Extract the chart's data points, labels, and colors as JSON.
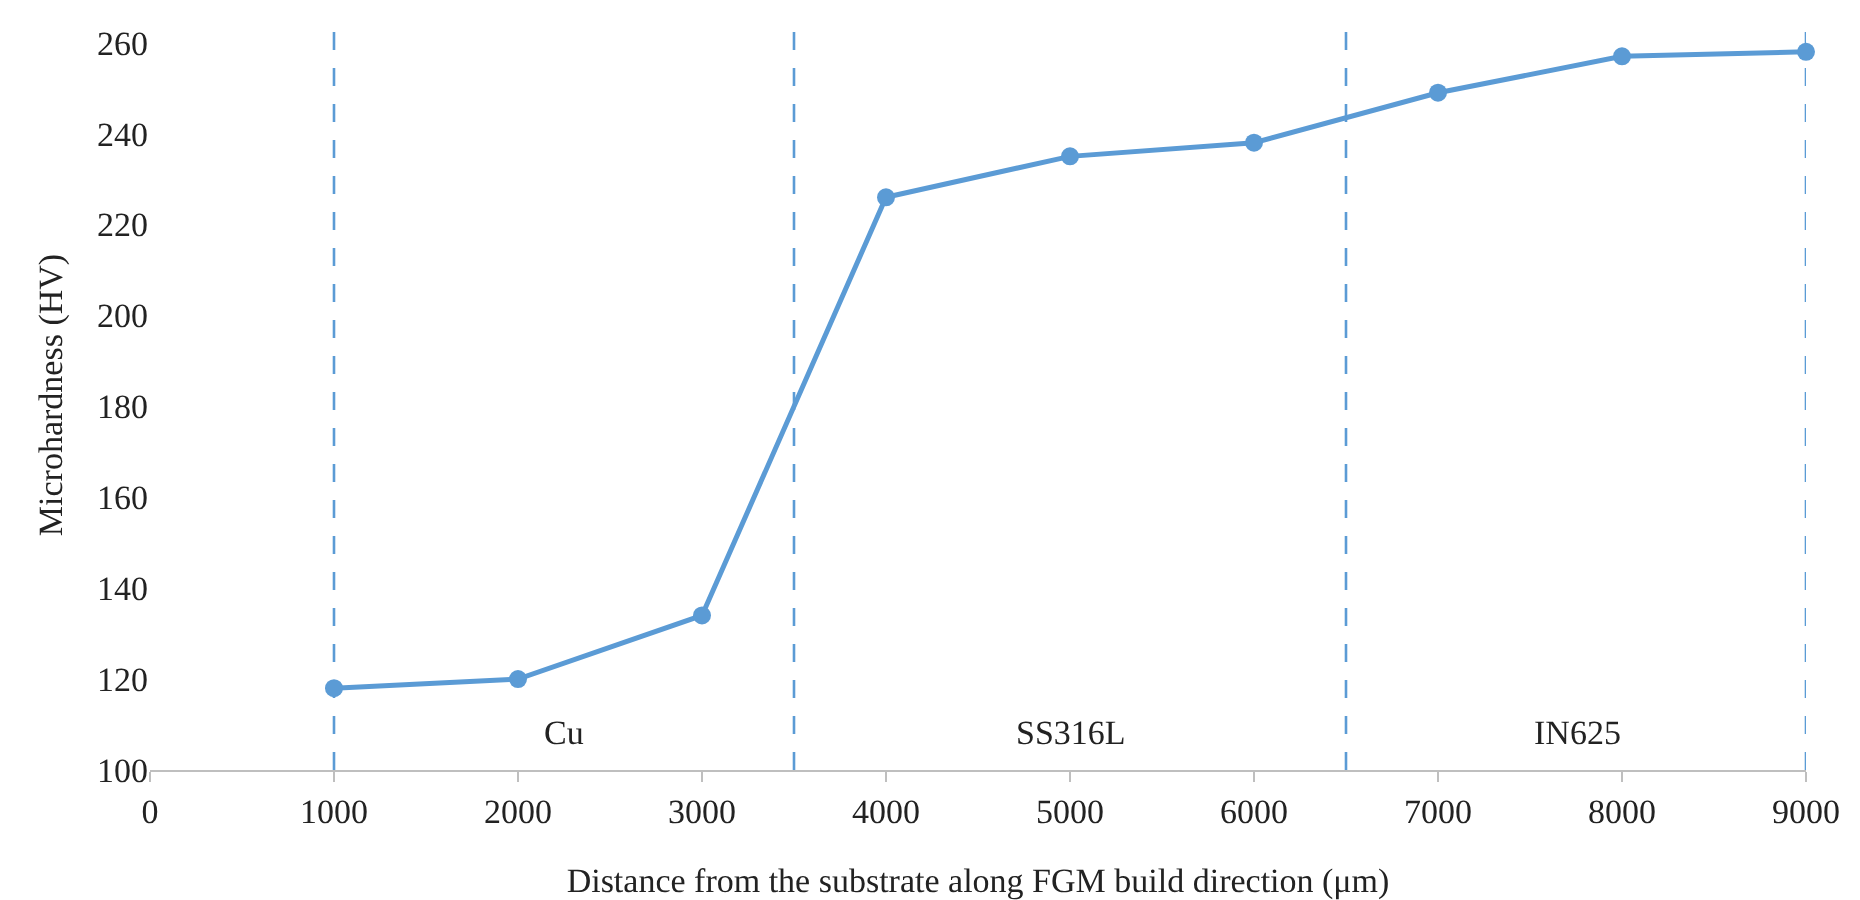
{
  "chart_data": {
    "type": "line",
    "xlabel": "Distance from the substrate along FGM build direction (μm)",
    "ylabel": "Microhardness (HV)",
    "x": [
      1000,
      2000,
      3000,
      4000,
      5000,
      6000,
      7000,
      8000,
      9000
    ],
    "series": [
      {
        "color": "#5b9bd5",
        "values": [
          118,
          120,
          134,
          226,
          235,
          238,
          249,
          257,
          258
        ]
      }
    ],
    "xlim": [
      0,
      9000
    ],
    "xticks": [
      0,
      1000,
      2000,
      3000,
      4000,
      5000,
      6000,
      7000,
      8000,
      9000
    ],
    "ylim": [
      100,
      265
    ],
    "yticks": [
      100,
      120,
      140,
      160,
      180,
      200,
      220,
      240,
      260
    ],
    "marker": "circle",
    "line_style": "solid",
    "grid": false,
    "ref_lines": [
      {
        "axis": "x",
        "value": 1000,
        "color": "#5b9bd5",
        "line_style": "dashed"
      },
      {
        "axis": "x",
        "value": 3500,
        "color": "#5b9bd5",
        "line_style": "dashed"
      },
      {
        "axis": "x",
        "value": 6500,
        "color": "#5b9bd5",
        "line_style": "dashed"
      },
      {
        "axis": "x",
        "value": 9000,
        "color": "#5b9bd5",
        "line_style": "dashed"
      }
    ],
    "annotations": [
      "Cu",
      "SS316L",
      "IN625"
    ]
  }
}
